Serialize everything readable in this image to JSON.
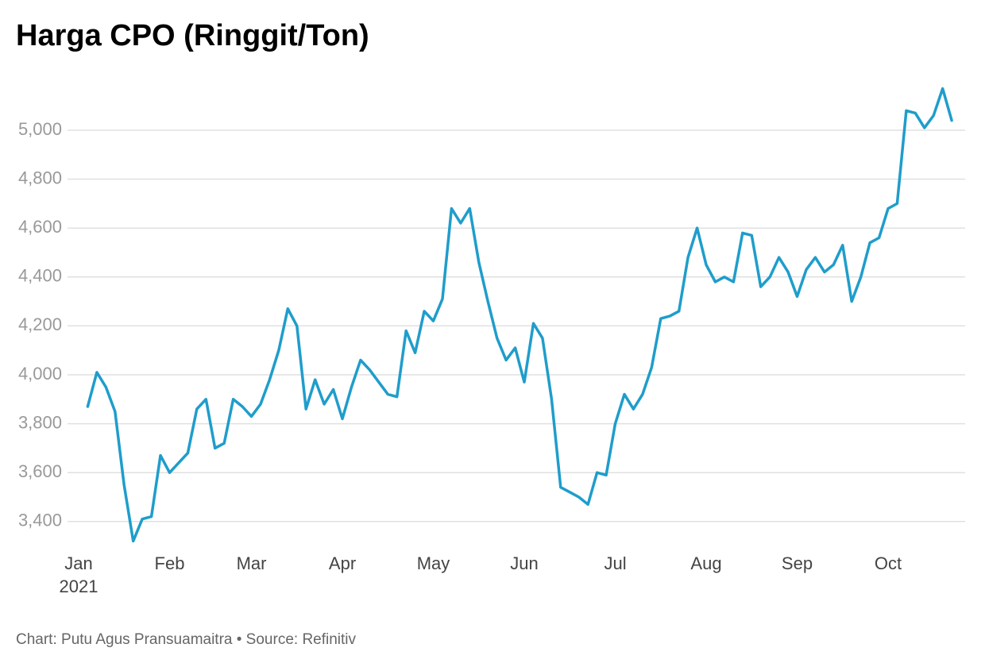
{
  "chart_data": {
    "type": "line",
    "title": "Harga CPO (Ringgit/Ton)",
    "source": "Chart: Putu Agus Pransuamaitra • Source: Refinitiv",
    "year_label": "2021",
    "categories": [
      "Jan",
      null,
      null,
      null,
      null,
      null,
      null,
      null,
      null,
      null,
      "Feb",
      null,
      null,
      null,
      null,
      null,
      null,
      null,
      null,
      "Mar",
      null,
      null,
      null,
      null,
      null,
      null,
      null,
      null,
      null,
      "Apr",
      null,
      null,
      null,
      null,
      null,
      null,
      null,
      null,
      null,
      "May",
      null,
      null,
      null,
      null,
      null,
      null,
      null,
      null,
      null,
      "Jun",
      null,
      null,
      null,
      null,
      null,
      null,
      null,
      null,
      null,
      "Jul",
      null,
      null,
      null,
      null,
      null,
      null,
      null,
      null,
      null,
      "Aug",
      null,
      null,
      null,
      null,
      null,
      null,
      null,
      null,
      null,
      "Sep",
      null,
      null,
      null,
      null,
      null,
      null,
      null,
      null,
      null,
      "Oct",
      null,
      null,
      null,
      null,
      null,
      null,
      null
    ],
    "series": [
      {
        "name": "CPO",
        "color": "#1f9dcb",
        "values": [
          null,
          3870,
          4010,
          3950,
          3850,
          3550,
          3320,
          3410,
          3420,
          3670,
          3600,
          3640,
          3680,
          3860,
          3900,
          3700,
          3720,
          3900,
          3870,
          3830,
          3880,
          3980,
          4100,
          4270,
          4200,
          3860,
          3980,
          3880,
          3940,
          3820,
          3950,
          4060,
          4020,
          3970,
          3920,
          3910,
          4180,
          4090,
          4260,
          4220,
          4310,
          4680,
          4620,
          4680,
          4460,
          4300,
          4150,
          4060,
          4110,
          3970,
          4210,
          4150,
          3900,
          3540,
          3520,
          3500,
          3470,
          3600,
          3590,
          3800,
          3920,
          3860,
          3920,
          4030,
          4230,
          4240,
          4260,
          4480,
          4600,
          4450,
          4380,
          4400,
          4380,
          4580,
          4570,
          4360,
          4400,
          4480,
          4420,
          4320,
          4430,
          4480,
          4420,
          4450,
          4530,
          4300,
          4400,
          4540,
          4560,
          4680,
          4700,
          5080,
          5070,
          5010,
          5060,
          5170,
          5040
        ]
      }
    ],
    "ylim": [
      3300,
      5200
    ],
    "yticks": [
      {
        "value": 3400,
        "label": "3,400"
      },
      {
        "value": 3600,
        "label": "3,600"
      },
      {
        "value": 3800,
        "label": "3,800"
      },
      {
        "value": 4000,
        "label": "4,000"
      },
      {
        "value": 4200,
        "label": "4,200"
      },
      {
        "value": 4400,
        "label": "4,400"
      },
      {
        "value": 4600,
        "label": "4,600"
      },
      {
        "value": 4800,
        "label": "4,800"
      },
      {
        "value": 5000,
        "label": "5,000"
      }
    ],
    "grid": true
  }
}
